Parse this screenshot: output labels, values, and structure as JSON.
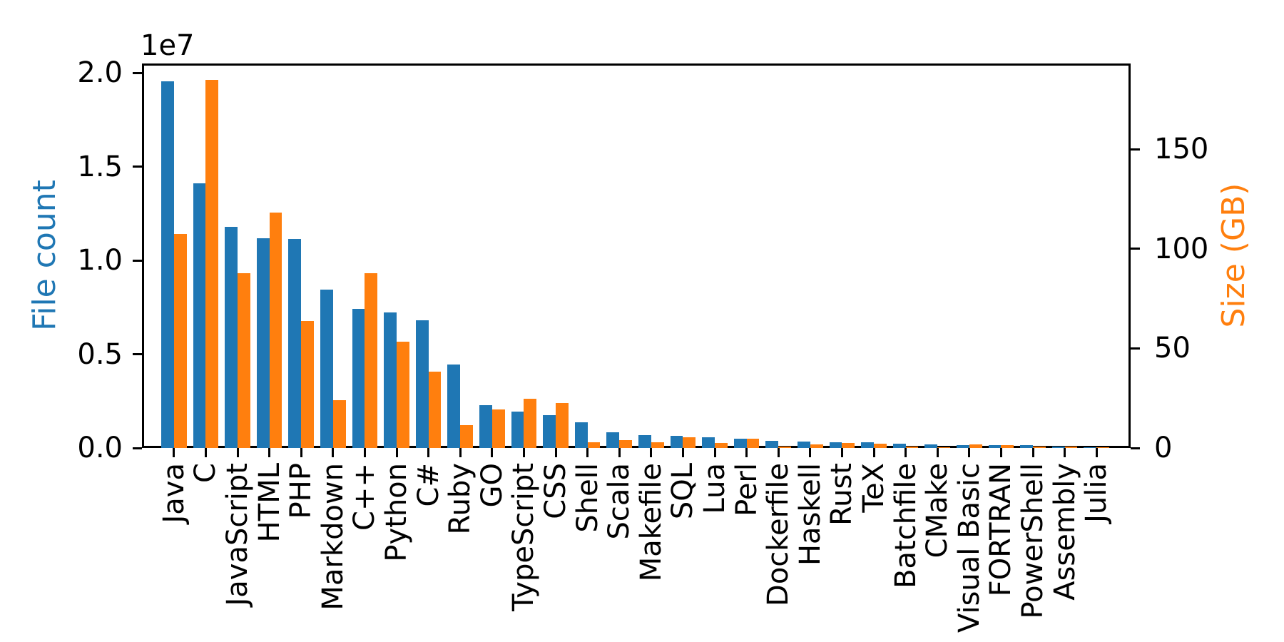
{
  "figure": {
    "background_color": "#ffffff",
    "spine_color": "#000000"
  },
  "chart_data": {
    "type": "bar",
    "title": "",
    "grid": false,
    "legend": false,
    "categories": [
      "Java",
      "C",
      "JavaScript",
      "HTML",
      "PHP",
      "Markdown",
      "C++",
      "Python",
      "C#",
      "Ruby",
      "GO",
      "TypeScript",
      "CSS",
      "Shell",
      "Scala",
      "Makefile",
      "SQL",
      "Lua",
      "Perl",
      "Dockerfile",
      "Haskell",
      "Rust",
      "TeX",
      "Batchfile",
      "CMake",
      "Visual Basic",
      "FORTRAN",
      "PowerShell",
      "Assembly",
      "Julia"
    ],
    "series": [
      {
        "name": "File count",
        "axis": "left",
        "color": "#1f77b4",
        "values": [
          19550000,
          14100000,
          11800000,
          11170000,
          11150000,
          8450000,
          7400000,
          7230000,
          6800000,
          4470000,
          2270000,
          1940000,
          1760000,
          1380000,
          840000,
          680000,
          660000,
          580000,
          500000,
          370000,
          340000,
          320000,
          300000,
          240000,
          175000,
          156000,
          142000,
          137000,
          83000,
          58000
        ]
      },
      {
        "name": "Size (GB)",
        "axis": "right",
        "color": "#ff7f0e",
        "values": [
          107.4,
          184.9,
          87.8,
          118.1,
          63.9,
          24.0,
          87.8,
          53.5,
          38.5,
          11.6,
          19.2,
          24.6,
          22.7,
          3.0,
          3.9,
          2.9,
          5.5,
          2.6,
          4.8,
          0.6,
          1.9,
          2.7,
          2.2,
          0.7,
          0.5,
          1.9,
          1.6,
          0.7,
          0.8,
          0.3
        ]
      }
    ],
    "left_axis": {
      "label": "File count",
      "label_color": "#1f77b4",
      "offset_label": "1e7",
      "tick_values": [
        0,
        5000000,
        10000000,
        15000000,
        20000000
      ],
      "tick_labels": [
        "0.0",
        "0.5",
        "1.0",
        "1.5",
        "2.0"
      ],
      "ylim": [
        0,
        20500000
      ]
    },
    "right_axis": {
      "label": "Size (GB)",
      "label_color": "#ff7f0e",
      "tick_values": [
        0,
        50,
        100,
        150
      ],
      "tick_labels": [
        "0",
        "50",
        "100",
        "150"
      ],
      "ylim": [
        0,
        193
      ]
    }
  }
}
